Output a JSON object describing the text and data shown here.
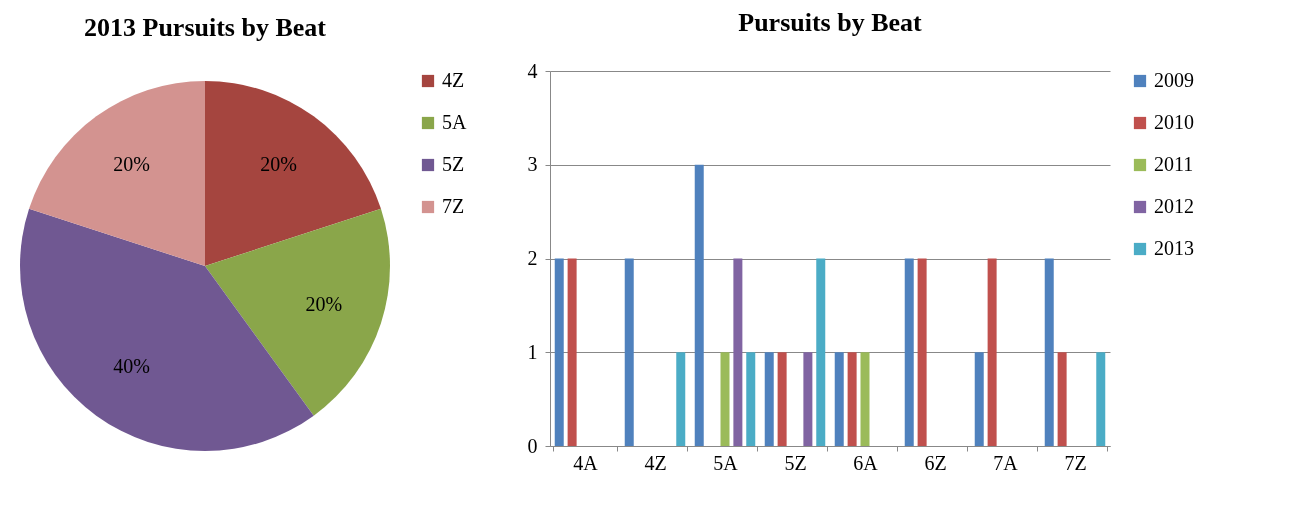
{
  "chart_data": [
    {
      "type": "pie",
      "title": "2013 Pursuits by Beat",
      "categories": [
        "4Z",
        "5A",
        "5Z",
        "7Z"
      ],
      "values": [
        20,
        20,
        40,
        20
      ],
      "colors": [
        "#a5453f",
        "#8aa64a",
        "#705892",
        "#d39390"
      ],
      "value_labels": [
        "20%",
        "20%",
        "40%",
        "20%"
      ],
      "legend": "right"
    },
    {
      "type": "bar",
      "title": "Pursuits by Beat",
      "categories": [
        "4A",
        "4Z",
        "5A",
        "5Z",
        "6A",
        "6Z",
        "7A",
        "7Z"
      ],
      "series": [
        {
          "name": "2009",
          "color": "#4f81bd",
          "values": [
            2,
            2,
            3,
            1,
            1,
            2,
            1,
            2
          ]
        },
        {
          "name": "2010",
          "color": "#c0504d",
          "values": [
            2,
            0,
            0,
            1,
            1,
            2,
            2,
            1
          ]
        },
        {
          "name": "2011",
          "color": "#9bbb59",
          "values": [
            0,
            0,
            1,
            0,
            1,
            0,
            0,
            0
          ]
        },
        {
          "name": "2012",
          "color": "#8064a2",
          "values": [
            0,
            0,
            2,
            1,
            0,
            0,
            0,
            0
          ]
        },
        {
          "name": "2013",
          "color": "#4bacc6",
          "values": [
            0,
            1,
            1,
            2,
            0,
            0,
            0,
            1
          ]
        }
      ],
      "ylim": [
        0,
        4
      ],
      "yticks": [
        0,
        1,
        2,
        3,
        4
      ],
      "grid": "y",
      "legend": "right"
    }
  ]
}
